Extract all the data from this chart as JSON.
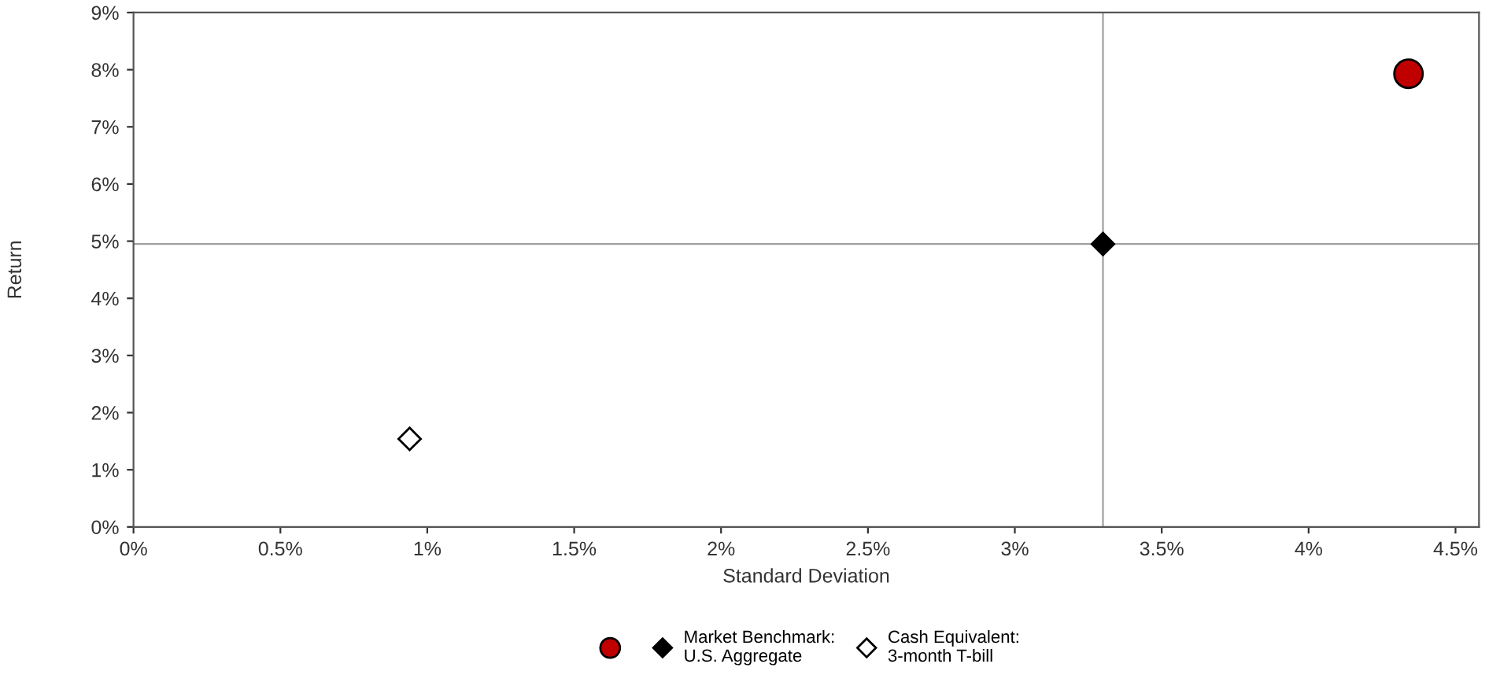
{
  "chart_data": {
    "type": "scatter",
    "xlabel": "Standard Deviation",
    "ylabel": "Return",
    "xlim": [
      0,
      4.58
    ],
    "ylim": [
      0,
      9
    ],
    "xticks": [
      {
        "value": 0,
        "label": "0%"
      },
      {
        "value": 0.5,
        "label": "0.5%"
      },
      {
        "value": 1,
        "label": "1%"
      },
      {
        "value": 1.5,
        "label": "1.5%"
      },
      {
        "value": 2,
        "label": "2%"
      },
      {
        "value": 2.5,
        "label": "2.5%"
      },
      {
        "value": 3,
        "label": "3%"
      },
      {
        "value": 3.5,
        "label": "3.5%"
      },
      {
        "value": 4,
        "label": "4%"
      },
      {
        "value": 4.5,
        "label": "4.5%"
      }
    ],
    "yticks": [
      {
        "value": 0,
        "label": "0%"
      },
      {
        "value": 1,
        "label": "1%"
      },
      {
        "value": 2,
        "label": "2%"
      },
      {
        "value": 3,
        "label": "3%"
      },
      {
        "value": 4,
        "label": "4%"
      },
      {
        "value": 5,
        "label": "5%"
      },
      {
        "value": 6,
        "label": "6%"
      },
      {
        "value": 7,
        "label": "7%"
      },
      {
        "value": 8,
        "label": "8%"
      },
      {
        "value": 9,
        "label": "9%"
      }
    ],
    "series": [
      {
        "color": "#c00000",
        "marker": "circle",
        "x": [
          4.34
        ],
        "values": [
          7.93
        ]
      },
      {
        "name": "Market Benchmark:\nU.S. Aggregate",
        "color": "#000000",
        "marker": "diamond",
        "x": [
          3.3
        ],
        "values": [
          4.95
        ]
      },
      {
        "name": "Cash Equivalent:\n3-month T-bill",
        "color": "#ffffff",
        "marker": "diamond",
        "x": [
          0.94
        ],
        "values": [
          1.54
        ]
      }
    ],
    "ref_lines": [
      {
        "axis": "x",
        "value": 3.3,
        "color": "#a0a0a0"
      },
      {
        "axis": "y",
        "value": 4.95,
        "color": "#a0a0a0"
      }
    ],
    "grid": false,
    "legend": "bottom"
  }
}
